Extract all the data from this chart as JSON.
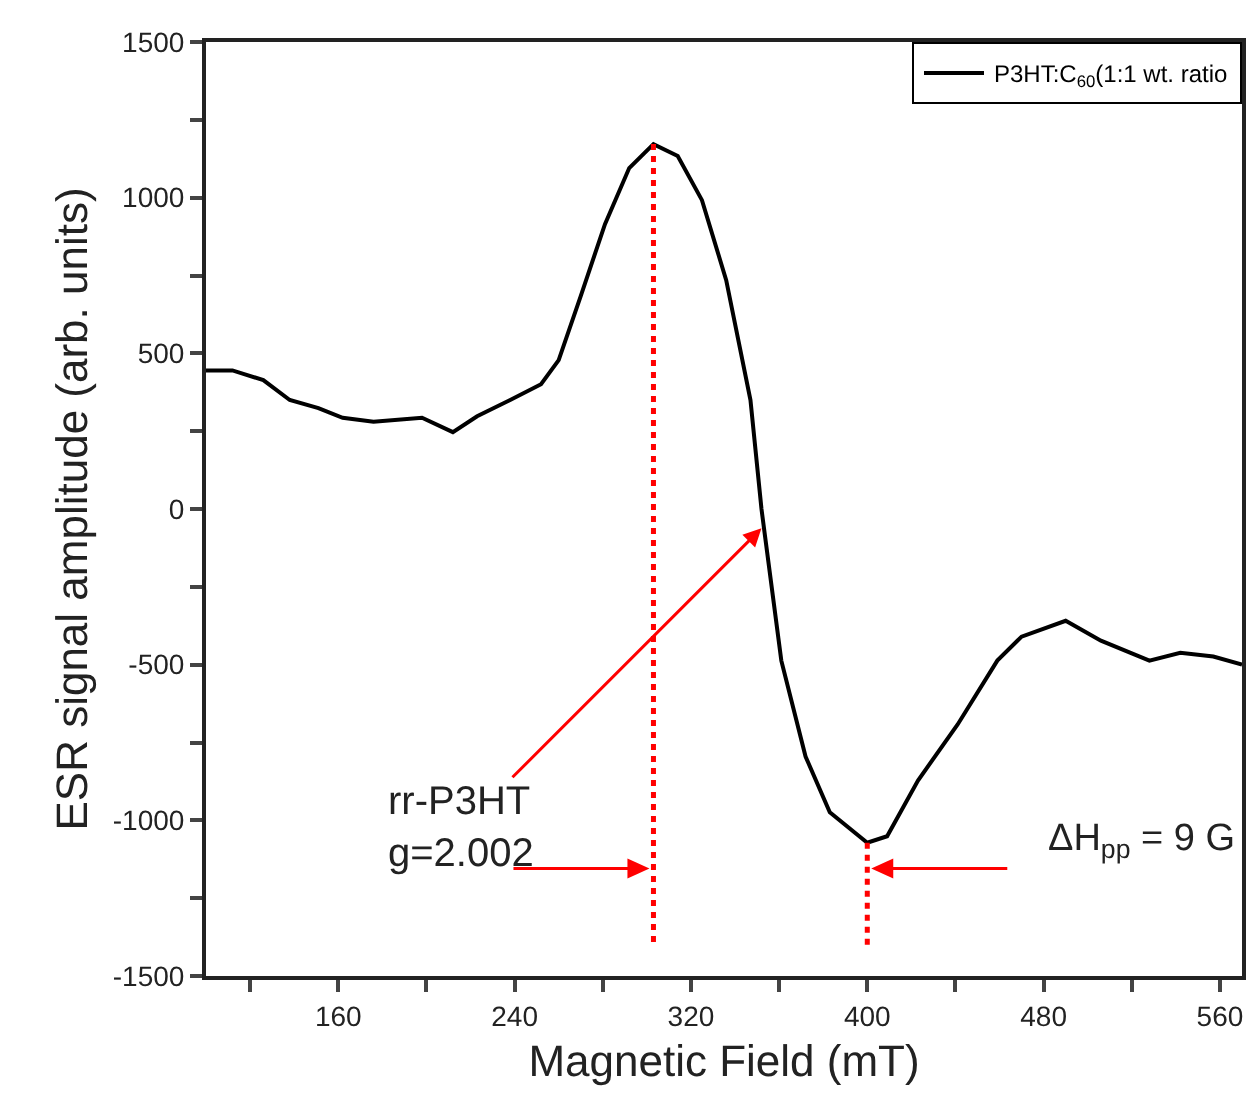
{
  "chart_data": {
    "type": "line",
    "xlabel": "Magnetic Field (mT)",
    "ylabel": "ESR signal amplitude (arb. units)",
    "xlim": [
      100,
      570
    ],
    "ylim": [
      -1500,
      1500
    ],
    "xticks": [
      {
        "value": 120,
        "label": null
      },
      160,
      {
        "value": 200,
        "label": null
      },
      240,
      {
        "value": 280,
        "label": null
      },
      320,
      {
        "value": 360,
        "label": null
      },
      400,
      {
        "value": 440,
        "label": null
      },
      480,
      {
        "value": 520,
        "label": null
      },
      560
    ],
    "yticks": [
      -1500,
      {
        "value": -1250,
        "label": null
      },
      -1000,
      {
        "value": -750,
        "label": null
      },
      -500,
      {
        "value": -250,
        "label": null
      },
      0,
      {
        "value": 250,
        "label": null
      },
      500,
      {
        "value": 750,
        "label": null
      },
      1000,
      {
        "value": 1250,
        "label": null
      },
      1500
    ],
    "grid": false,
    "legend": "top right",
    "marker": "none",
    "series": [
      {
        "name": "P3HT:C$_{60}$(1:1 wt. ratio",
        "color": "#000000",
        "line_style": "solid",
        "x": [
          100,
          112,
          126,
          138,
          151,
          162,
          176,
          198,
          212,
          223,
          238,
          252,
          260,
          270,
          281,
          292,
          303,
          314,
          325,
          336,
          347,
          352,
          361,
          372,
          383,
          400,
          409,
          423,
          441,
          459,
          470,
          490,
          506,
          528,
          542,
          557,
          570
        ],
        "values": [
          445,
          445,
          414,
          350,
          324,
          293,
          280,
          293,
          247,
          298,
          350,
          401,
          478,
          684,
          915,
          1095,
          1172,
          1134,
          992,
          735,
          350,
          0,
          -487,
          -795,
          -974,
          -1072,
          -1051,
          -872,
          -692,
          -487,
          -410,
          -359,
          -423,
          -487,
          -462,
          -474,
          -500
        ]
      },
      {
        "color": "#ff0000",
        "line_style": "dotted",
        "x": [
          303,
          303
        ],
        "values": [
          1172,
          -1400
        ]
      },
      {
        "color": "#ff0000",
        "line_style": "dotted",
        "x": [
          400,
          400
        ],
        "values": [
          -1072,
          -1400
        ]
      }
    ],
    "annotations": [
      {
        "text": "rr-P3HT\ng=2.002",
        "x": 352,
        "y": -62
      },
      "ΔH$_{pp}$ = 9 G"
    ]
  }
}
